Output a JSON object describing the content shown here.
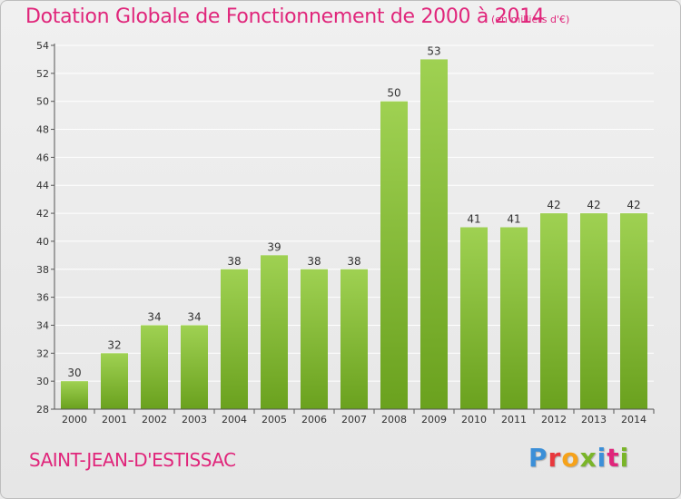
{
  "header": {
    "title": "Dotation Globale de Fonctionnement de 2000 à 2014",
    "unit": "(en milliers d'€)"
  },
  "footer": {
    "commune": "SAINT-JEAN-D'ESTISSAC",
    "brand": "Proxiti",
    "brand_colors": [
      "#3b8fd8",
      "#e8383d",
      "#f6a21a",
      "#7ab529",
      "#3b8fd8",
      "#e0267b",
      "#7ab529"
    ]
  },
  "colors": {
    "accent": "#e0267b",
    "bar_top": "#9fd152",
    "bar_bottom": "#6aa11e",
    "grid": "#ffffff",
    "axis": "#555555",
    "text": "#333333"
  },
  "chart_data": {
    "type": "bar",
    "categories": [
      "2000",
      "2001",
      "2002",
      "2003",
      "2004",
      "2005",
      "2006",
      "2007",
      "2008",
      "2009",
      "2010",
      "2011",
      "2012",
      "2013",
      "2014"
    ],
    "values": [
      30,
      32,
      34,
      34,
      38,
      39,
      38,
      38,
      50,
      53,
      41,
      41,
      42,
      42,
      42
    ],
    "data_labels": [
      "30",
      "32",
      "34",
      "34",
      "38",
      "39",
      "38",
      "38",
      "50",
      "53",
      "41",
      "41",
      "42",
      "42",
      "42"
    ],
    "yticks": [
      "28",
      "30",
      "32",
      "34",
      "36",
      "38",
      "40",
      "42",
      "44",
      "46",
      "48",
      "50",
      "52",
      "54"
    ],
    "ylim": [
      28,
      54
    ],
    "title": "Dotation Globale de Fonctionnement de 2000 à 2014",
    "subtitle": "(en milliers d'€)",
    "xlabel": "",
    "ylabel": "",
    "grid": true,
    "legend": "none"
  }
}
